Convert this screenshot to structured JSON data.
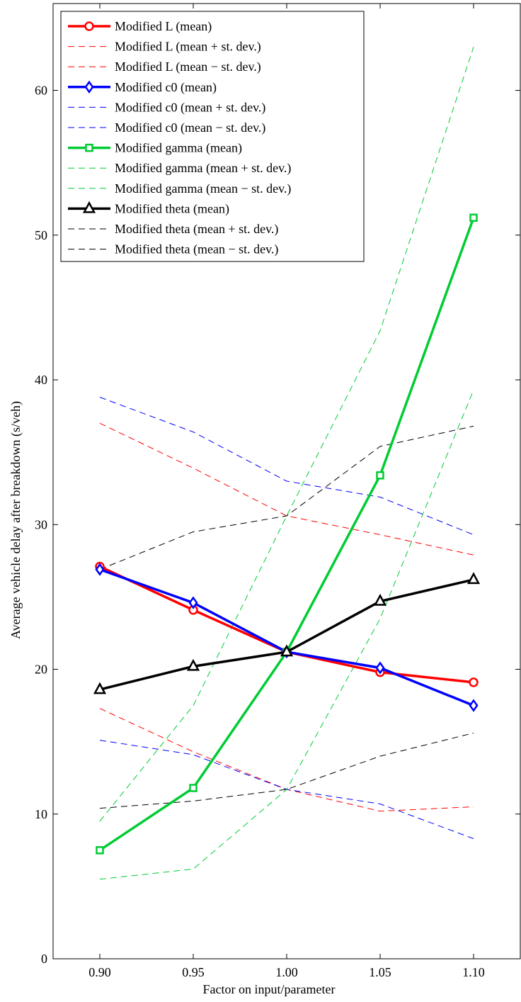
{
  "chart_data": {
    "type": "line",
    "xlabel": "Factor on input/parameter",
    "ylabel": "Average vehicle delay after breakdown (s/veh)",
    "x": [
      0.9,
      0.95,
      1.0,
      1.05,
      1.1
    ],
    "x_tick_labels": [
      "0.90",
      "0.95",
      "1.00",
      "1.05",
      "1.10"
    ],
    "xlim": [
      0.875,
      1.125
    ],
    "ylim": [
      0,
      66
    ],
    "y_ticks": [
      0,
      10,
      20,
      30,
      40,
      50,
      60
    ],
    "y_tick_labels": [
      "0",
      "10",
      "20",
      "30",
      "40",
      "50",
      "60"
    ],
    "grid": false,
    "legend_position": "top-left",
    "series": [
      {
        "name": "Modified L (mean)",
        "color": "#ff0000",
        "style": "solid",
        "marker": "circle",
        "values": [
          27.1,
          24.1,
          21.2,
          19.8,
          19.1
        ]
      },
      {
        "name": "Modified L (mean + st. dev.)",
        "color": "#ff0000",
        "style": "dashed",
        "marker": "none",
        "values": [
          37.0,
          33.9,
          30.6,
          29.3,
          27.9
        ]
      },
      {
        "name": "Modified L (mean − st. dev.)",
        "color": "#ff0000",
        "style": "dashed",
        "marker": "none",
        "values": [
          17.3,
          14.3,
          11.7,
          10.2,
          10.5
        ]
      },
      {
        "name": "Modified c0 (mean)",
        "color": "#0000ff",
        "style": "solid",
        "marker": "diamond",
        "values": [
          26.9,
          24.6,
          21.2,
          20.1,
          17.5
        ]
      },
      {
        "name": "Modified c0 (mean + st. dev.)",
        "color": "#0000ff",
        "style": "dashed",
        "marker": "none",
        "values": [
          38.8,
          36.4,
          33.0,
          31.9,
          29.3
        ]
      },
      {
        "name": "Modified c0 (mean − st. dev.)",
        "color": "#0000ff",
        "style": "dashed",
        "marker": "none",
        "values": [
          15.1,
          14.1,
          11.7,
          10.7,
          8.3
        ]
      },
      {
        "name": "Modified gamma (mean)",
        "color": "#00cc33",
        "style": "solid",
        "marker": "square",
        "values": [
          7.5,
          11.8,
          21.2,
          33.4,
          51.2
        ]
      },
      {
        "name": "Modified gamma (mean + st. dev.)",
        "color": "#00cc33",
        "style": "dashed",
        "marker": "none",
        "values": [
          9.5,
          17.5,
          30.6,
          43.4,
          63.0
        ]
      },
      {
        "name": "Modified gamma (mean − st. dev.)",
        "color": "#00cc33",
        "style": "dashed",
        "marker": "none",
        "values": [
          5.5,
          6.2,
          11.7,
          23.5,
          39.3
        ]
      },
      {
        "name": "Modified theta (mean)",
        "color": "#000000",
        "style": "solid",
        "marker": "triangle",
        "values": [
          18.6,
          20.2,
          21.2,
          24.7,
          26.2
        ]
      },
      {
        "name": "Modified theta (mean + st. dev.)",
        "color": "#000000",
        "style": "dashed",
        "marker": "none",
        "values": [
          26.9,
          29.5,
          30.6,
          35.4,
          36.8
        ]
      },
      {
        "name": "Modified theta (mean − st. dev.)",
        "color": "#000000",
        "style": "dashed",
        "marker": "none",
        "values": [
          10.4,
          10.9,
          11.7,
          14.0,
          15.6
        ]
      }
    ]
  }
}
